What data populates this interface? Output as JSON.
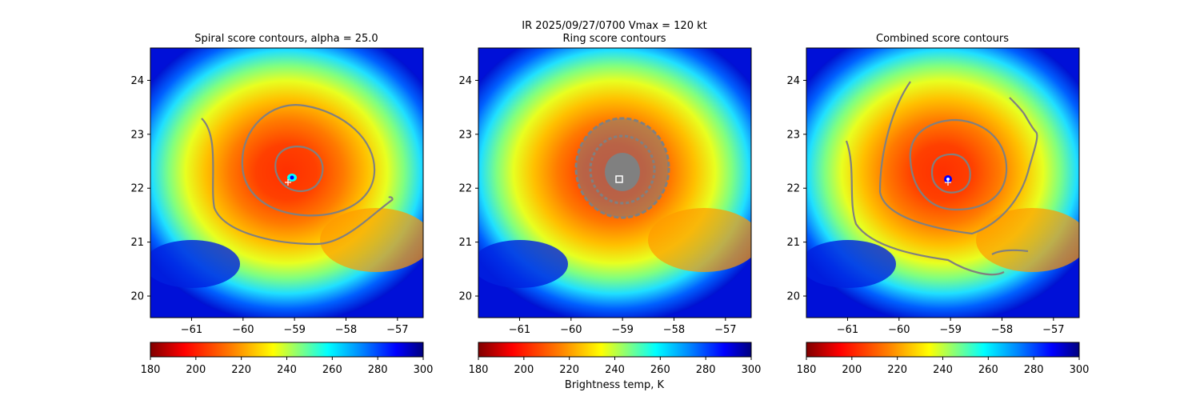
{
  "figure": {
    "suptitle": "IR  2025/09/27/0700    Vmax = 120 kt",
    "colorbar_label": "Brightness temp, K"
  },
  "colormap": {
    "name": "jet_r",
    "stops": [
      "#800000",
      "#ff0000",
      "#ff8000",
      "#ffff00",
      "#80ff80",
      "#00ffff",
      "#0080ff",
      "#0000ff",
      "#000080"
    ]
  },
  "contour_color": "#808080",
  "chart_data": [
    {
      "type": "heatmap",
      "title": "Spiral score contours, alpha = 25.0",
      "xlabel": "",
      "ylabel": "",
      "xlim": [
        -61.8,
        -56.5
      ],
      "ylim": [
        19.6,
        24.6
      ],
      "xticks": [
        "−61",
        "−60",
        "−59",
        "−58",
        "−57"
      ],
      "yticks": [
        "20",
        "21",
        "22",
        "23",
        "24"
      ],
      "colorbar": {
        "range": [
          180,
          300
        ],
        "ticks": [
          "180",
          "200",
          "220",
          "240",
          "260",
          "280",
          "300"
        ]
      },
      "center": {
        "lon": -59.0,
        "lat": 22.2
      },
      "marker": "plus"
    },
    {
      "type": "heatmap",
      "title": "Ring score contours",
      "xlabel": "",
      "ylabel": "",
      "xlim": [
        -61.8,
        -56.5
      ],
      "ylim": [
        19.6,
        24.6
      ],
      "xticks": [
        "−61",
        "−60",
        "−59",
        "−58",
        "−57"
      ],
      "yticks": [
        "20",
        "21",
        "22",
        "23",
        "24"
      ],
      "colorbar": {
        "range": [
          180,
          300
        ],
        "ticks": [
          "180",
          "200",
          "220",
          "240",
          "260",
          "280",
          "300"
        ]
      },
      "center": {
        "lon": -59.0,
        "lat": 22.2
      },
      "marker": "square"
    },
    {
      "type": "heatmap",
      "title": "Combined score contours",
      "xlabel": "",
      "ylabel": "",
      "xlim": [
        -61.8,
        -56.5
      ],
      "ylim": [
        19.6,
        24.6
      ],
      "xticks": [
        "−61",
        "−60",
        "−59",
        "−58",
        "−57"
      ],
      "yticks": [
        "20",
        "21",
        "22",
        "23",
        "24"
      ],
      "colorbar": {
        "range": [
          180,
          300
        ],
        "ticks": [
          "180",
          "200",
          "220",
          "240",
          "260",
          "280",
          "300"
        ]
      },
      "center": {
        "lon": -59.0,
        "lat": 22.2
      },
      "marker": "dot"
    }
  ]
}
